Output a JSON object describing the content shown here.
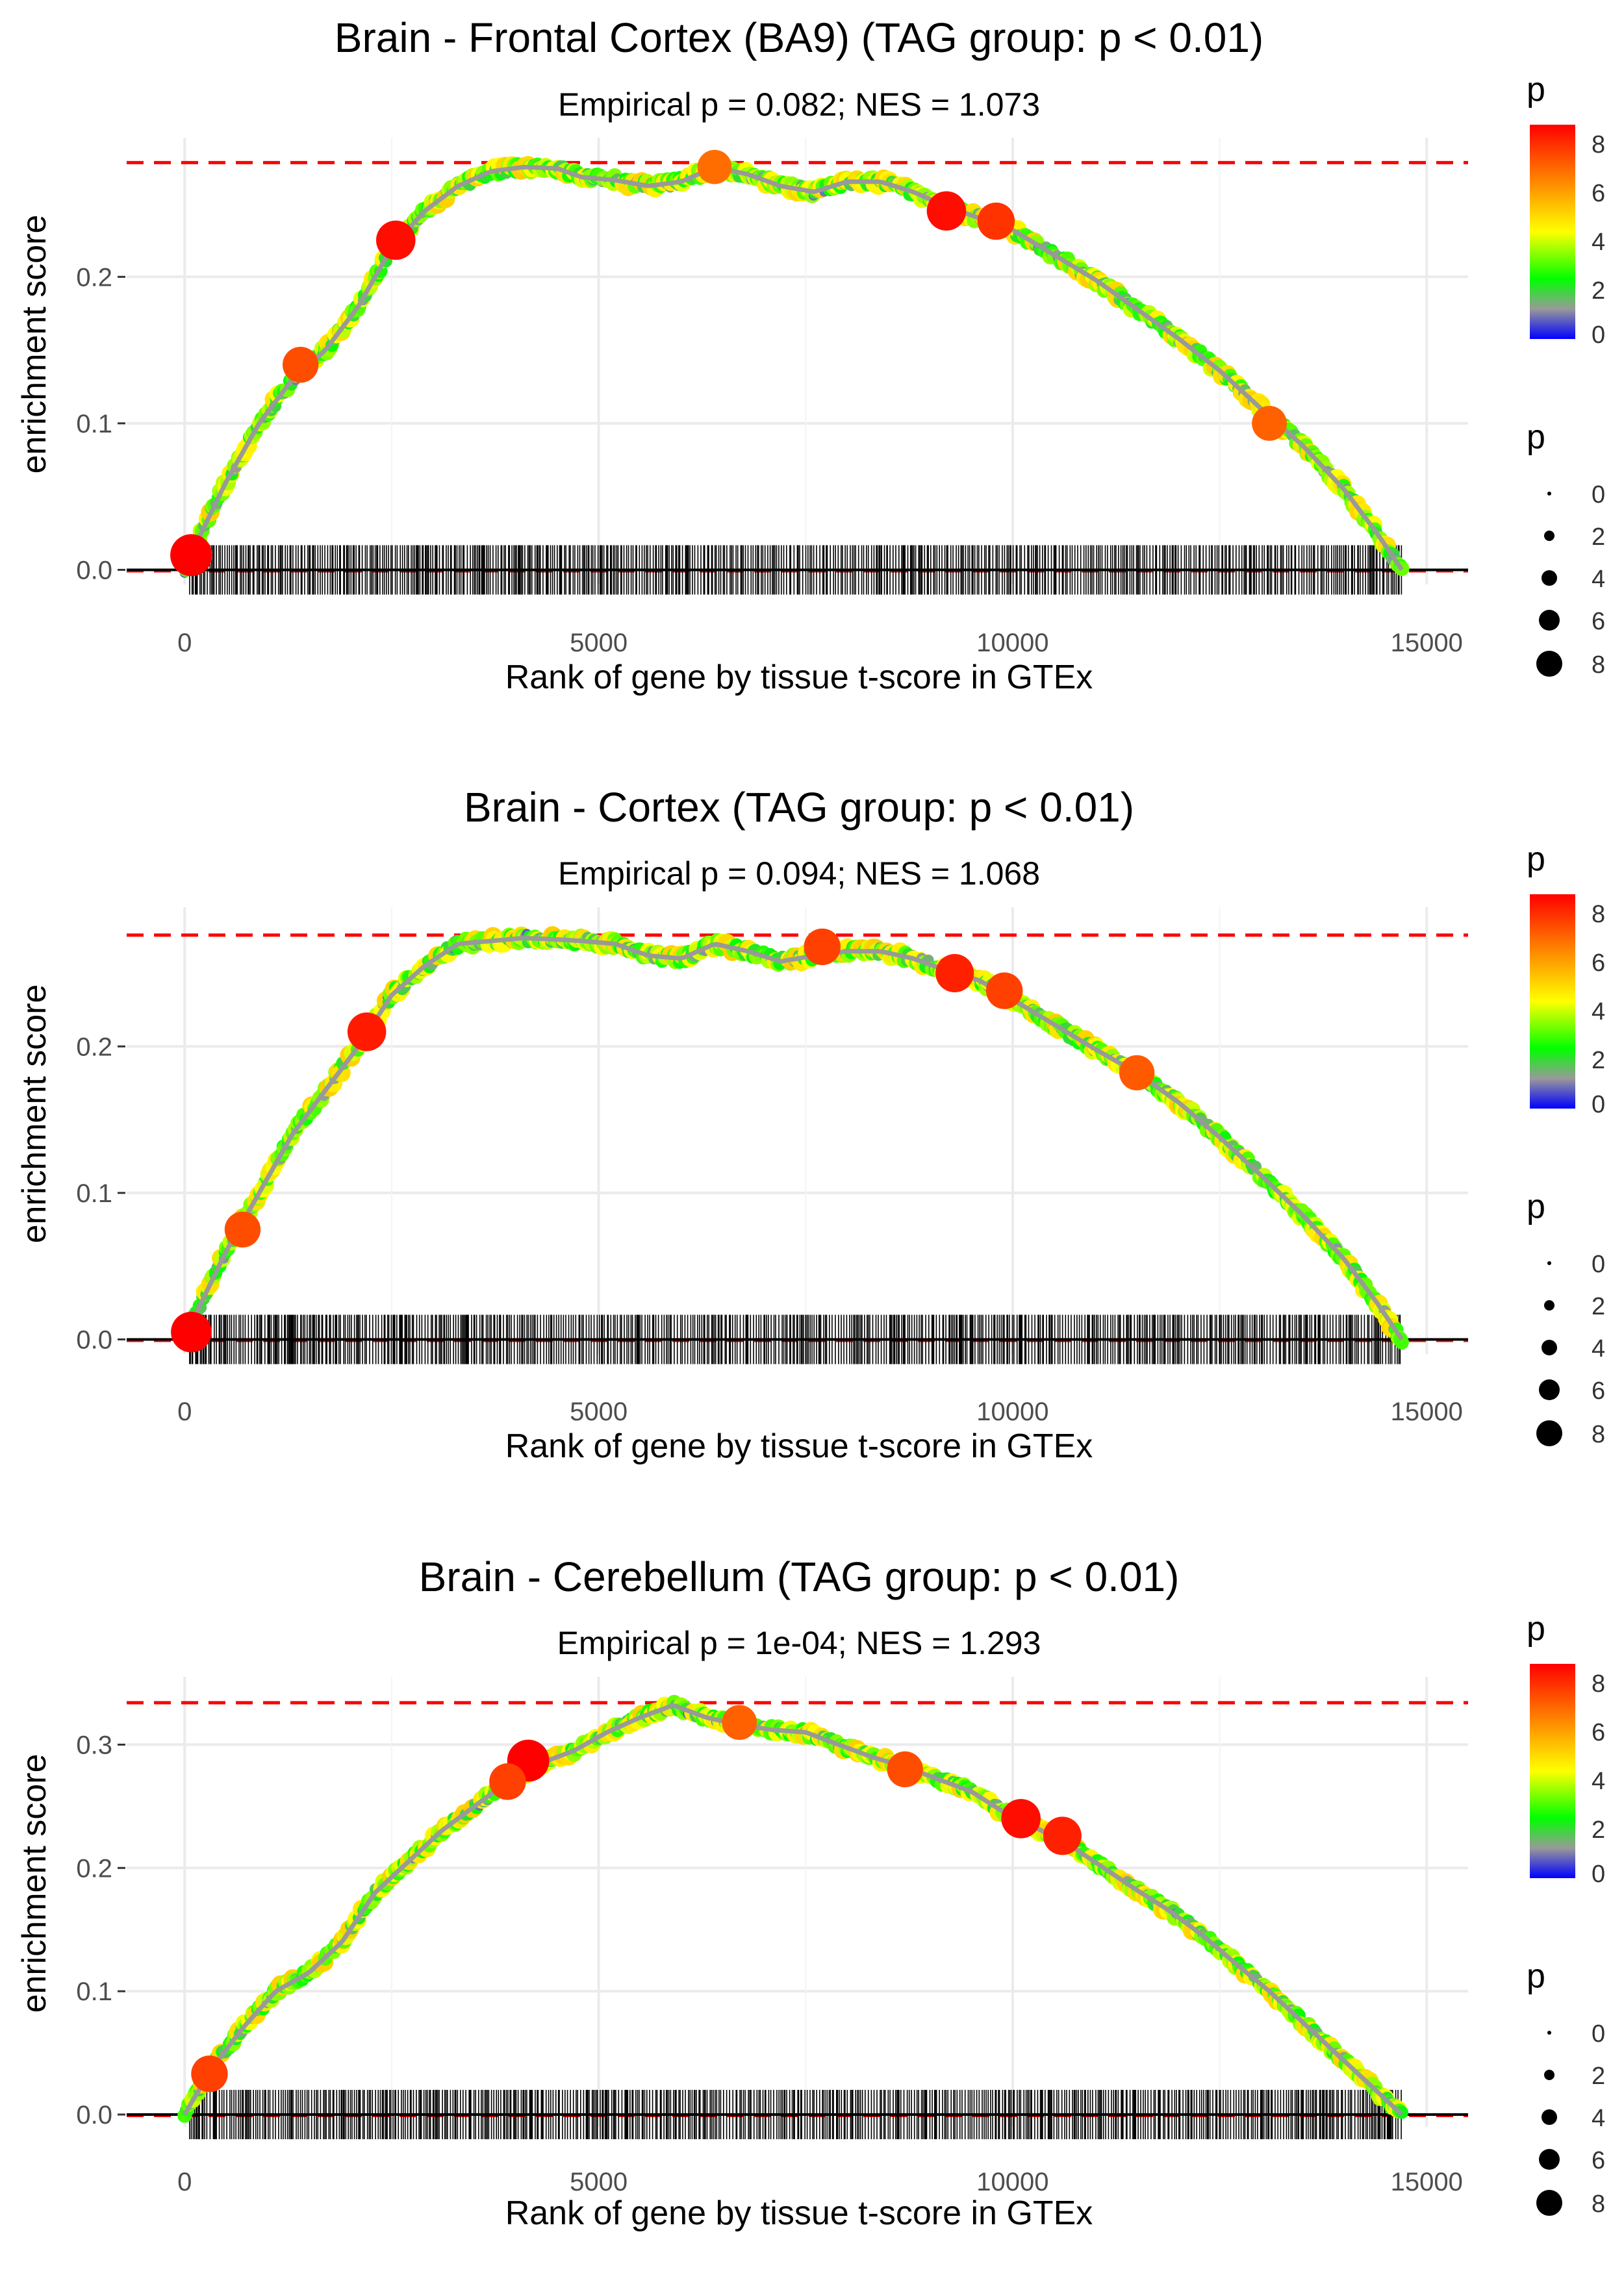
{
  "chart_data": [
    {
      "type": "line",
      "title": "Brain - Frontal Cortex (BA9) (TAG group: p < 0.01)",
      "subtitle": "Empirical p = 0.082; NES = 1.073",
      "xlabel": "Rank of gene by tissue t-score in GTEx",
      "ylabel": "enrichment score",
      "xlim": [
        -700,
        15500
      ],
      "ylim": [
        -0.01,
        0.295
      ],
      "xticks": [
        0,
        5000,
        10000,
        15000
      ],
      "yticks": [
        0.0,
        0.1,
        0.2
      ],
      "ytick_labels": [
        "0.0",
        "0.1",
        "0.2"
      ],
      "max_es_line": 0.278,
      "grid": true,
      "curve": {
        "x": [
          0,
          200,
          500,
          900,
          1300,
          1700,
          2100,
          2500,
          2900,
          3300,
          3700,
          4100,
          4500,
          4800,
          5200,
          5600,
          6000,
          6400,
          6800,
          7200,
          7600,
          8000,
          8400,
          8800,
          9200,
          9600,
          10000,
          10500,
          11000,
          11500,
          12000,
          12500,
          13000,
          13500,
          14000,
          14400,
          14700
        ],
        "y": [
          0.0,
          0.025,
          0.06,
          0.1,
          0.13,
          0.15,
          0.18,
          0.22,
          0.245,
          0.262,
          0.272,
          0.275,
          0.274,
          0.268,
          0.266,
          0.262,
          0.265,
          0.275,
          0.27,
          0.262,
          0.258,
          0.265,
          0.265,
          0.258,
          0.248,
          0.24,
          0.232,
          0.215,
          0.198,
          0.178,
          0.158,
          0.136,
          0.11,
          0.085,
          0.055,
          0.025,
          0.0
        ]
      },
      "highlight_points": [
        {
          "x": 80,
          "y": 0.01,
          "p": 8.6
        },
        {
          "x": 2550,
          "y": 0.225,
          "p": 7.8
        },
        {
          "x": 9200,
          "y": 0.245,
          "p": 7.8
        },
        {
          "x": 9800,
          "y": 0.238,
          "p": 7.2
        },
        {
          "x": 1400,
          "y": 0.14,
          "p": 6.8
        },
        {
          "x": 6400,
          "y": 0.275,
          "p": 6.3
        },
        {
          "x": 13100,
          "y": 0.1,
          "p": 6.5
        }
      ]
    },
    {
      "type": "line",
      "title": "Brain - Cortex (TAG group: p < 0.01)",
      "subtitle": "Empirical p = 0.094; NES = 1.068",
      "xlabel": "Rank of gene by tissue t-score in GTEx",
      "ylabel": "enrichment score",
      "xlim": [
        -700,
        15500
      ],
      "ylim": [
        -0.01,
        0.295
      ],
      "xticks": [
        0,
        5000,
        10000,
        15000
      ],
      "yticks": [
        0.0,
        0.1,
        0.2
      ],
      "ytick_labels": [
        "0.0",
        "0.1",
        "0.2"
      ],
      "max_es_line": 0.276,
      "grid": true,
      "curve": {
        "x": [
          0,
          200,
          500,
          900,
          1300,
          1700,
          2100,
          2500,
          2900,
          3300,
          3700,
          4100,
          4500,
          4800,
          5200,
          5600,
          6000,
          6400,
          6800,
          7200,
          7600,
          8000,
          8400,
          8800,
          9200,
          9600,
          10000,
          10500,
          11000,
          11500,
          12000,
          12500,
          13000,
          13500,
          14000,
          14400,
          14700
        ],
        "y": [
          0.0,
          0.025,
          0.06,
          0.1,
          0.14,
          0.17,
          0.2,
          0.235,
          0.255,
          0.27,
          0.272,
          0.274,
          0.273,
          0.272,
          0.27,
          0.262,
          0.26,
          0.27,
          0.265,
          0.258,
          0.262,
          0.265,
          0.265,
          0.26,
          0.252,
          0.245,
          0.232,
          0.215,
          0.198,
          0.182,
          0.162,
          0.138,
          0.112,
          0.085,
          0.055,
          0.025,
          0.0
        ]
      },
      "highlight_points": [
        {
          "x": 80,
          "y": 0.005,
          "p": 8.2
        },
        {
          "x": 2200,
          "y": 0.21,
          "p": 7.6
        },
        {
          "x": 9300,
          "y": 0.25,
          "p": 7.5
        },
        {
          "x": 9900,
          "y": 0.238,
          "p": 7.0
        },
        {
          "x": 700,
          "y": 0.075,
          "p": 6.8
        },
        {
          "x": 7700,
          "y": 0.268,
          "p": 7.0
        },
        {
          "x": 11500,
          "y": 0.182,
          "p": 6.6
        }
      ]
    },
    {
      "type": "line",
      "title": "Brain - Cerebellum (TAG group: p < 0.01)",
      "subtitle": "Empirical p = 1e-04; NES = 1.293",
      "xlabel": "Rank of gene by tissue t-score in GTEx",
      "ylabel": "enrichment score",
      "xlim": [
        -700,
        15500
      ],
      "ylim": [
        -0.01,
        0.355
      ],
      "xticks": [
        0,
        5000,
        10000,
        15000
      ],
      "yticks": [
        0.0,
        0.1,
        0.2,
        0.3
      ],
      "ytick_labels": [
        "0.0",
        "0.1",
        "0.2",
        "0.3"
      ],
      "max_es_line": 0.334,
      "grid": true,
      "curve": {
        "x": [
          0,
          300,
          700,
          1100,
          1500,
          1900,
          2300,
          2700,
          3100,
          3500,
          3900,
          4300,
          4700,
          5100,
          5500,
          5900,
          6300,
          6700,
          7100,
          7500,
          7900,
          8300,
          8700,
          9100,
          9500,
          9900,
          10300,
          10700,
          11100,
          11500,
          11900,
          12300,
          12700,
          13100,
          13500,
          13900,
          14300,
          14700
        ],
        "y": [
          0.0,
          0.035,
          0.07,
          0.1,
          0.115,
          0.14,
          0.18,
          0.205,
          0.23,
          0.25,
          0.27,
          0.285,
          0.295,
          0.31,
          0.322,
          0.332,
          0.322,
          0.316,
          0.312,
          0.31,
          0.3,
          0.29,
          0.282,
          0.272,
          0.262,
          0.245,
          0.232,
          0.218,
          0.2,
          0.182,
          0.165,
          0.145,
          0.122,
          0.1,
          0.075,
          0.05,
          0.025,
          0.0
        ]
      },
      "highlight_points": [
        {
          "x": 4150,
          "y": 0.287,
          "p": 8.6
        },
        {
          "x": 10100,
          "y": 0.24,
          "p": 7.8
        },
        {
          "x": 10600,
          "y": 0.226,
          "p": 7.5
        },
        {
          "x": 300,
          "y": 0.033,
          "p": 7.0
        },
        {
          "x": 3900,
          "y": 0.27,
          "p": 7.0
        },
        {
          "x": 8700,
          "y": 0.28,
          "p": 6.8
        },
        {
          "x": 6700,
          "y": 0.318,
          "p": 6.5
        }
      ]
    }
  ],
  "legends": {
    "color_title": "p",
    "color_ticks": [
      "8",
      "6",
      "4",
      "2",
      "0"
    ],
    "color_stops": [
      "#ff0000",
      "#ff8000",
      "#ffff00",
      "#00ff00",
      "#999999",
      "#0000ff"
    ],
    "size_title": "p",
    "size_ticks": [
      "0",
      "2",
      "4",
      "6",
      "8"
    ]
  },
  "colors": {
    "max_line": "#ff0000",
    "zero_line": "#000000",
    "rug": "#000000",
    "grid": "#ebebeb",
    "curve": "#999999"
  }
}
